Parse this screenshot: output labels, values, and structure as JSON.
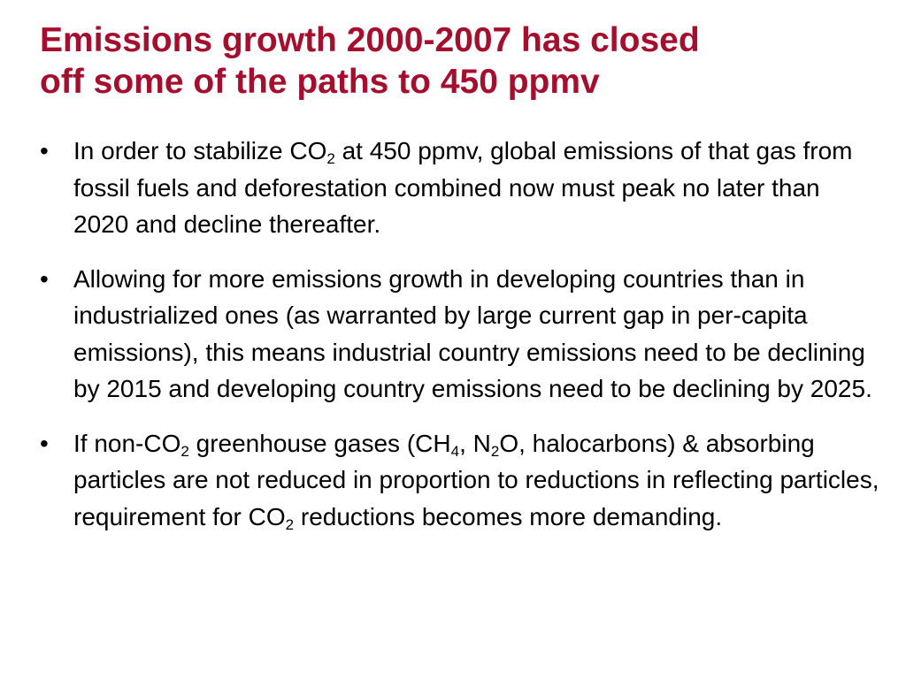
{
  "title": {
    "line1": "Emissions growth 2000-2007 has closed",
    "line2": "off some of the paths to 450 ppmv"
  },
  "bullet_symbol": "•",
  "bullets": [
    {
      "p1": "In order to stabilize CO",
      "sub1": "2",
      "p2": " at 450 ppmv, global emissions of that gas from fossil fuels and deforestation combined now must peak no later than 2020 and decline thereafter."
    },
    {
      "p1": "Allowing for more emissions growth in developing countries than in industrialized ones (as warranted by large current gap in per-capita emissions), this means industrial country emissions need to be declining by 2015 and developing country emissions need to be declining by 2025."
    },
    {
      "p1": "If non-CO",
      "sub1": "2",
      "p2": " greenhouse gases (CH",
      "sub2": "4",
      "p3": ", N",
      "sub3": "2",
      "p4": "O, halocarbons) & absorbing particles are not reduced in proportion to reductions in reflecting particles, requirement for CO",
      "sub4": "2",
      "p5": " reductions becomes more demanding."
    }
  ]
}
